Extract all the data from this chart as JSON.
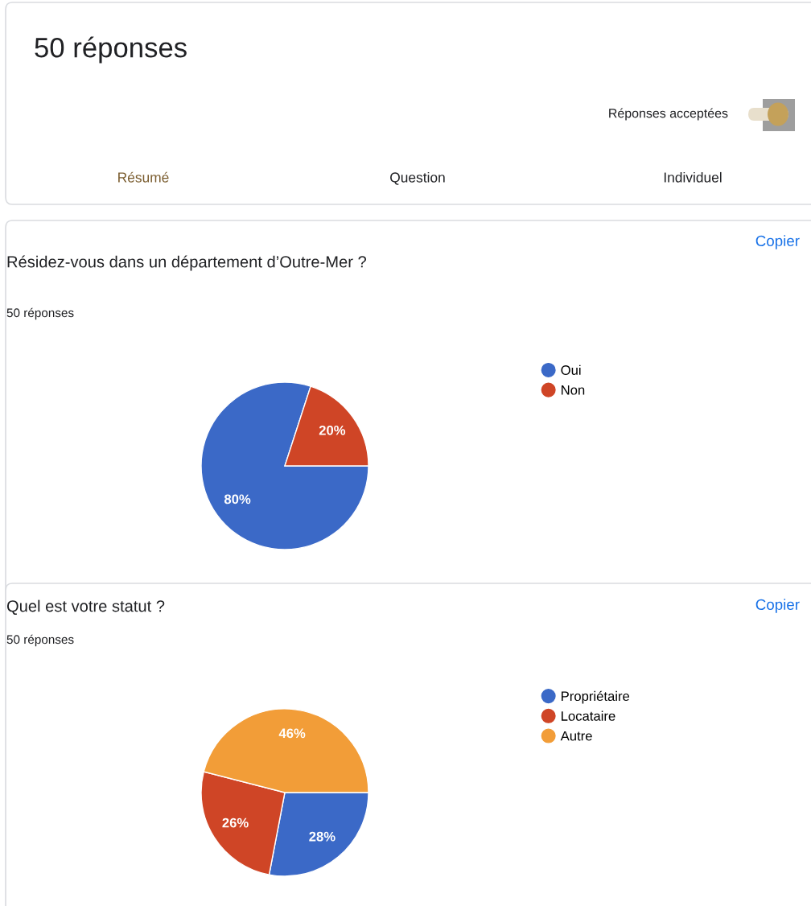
{
  "chart_data": [
    {
      "type": "other",
      "title": "50 réponses",
      "annotations": [
        "Réponses acceptées",
        "Résumé",
        "Question",
        "Individuel"
      ]
    },
    {
      "type": "pie",
      "title": "Résidez-vous dans un département d’Outre-Mer ?",
      "subtitle": "50 réponses",
      "categories": [
        "Oui",
        "Non"
      ],
      "values": [
        80,
        20
      ],
      "colors": [
        "#3b69c7",
        "#cf4526"
      ],
      "value_labels": [
        "80%",
        "20%"
      ],
      "legend": "right",
      "annotations": [
        "Copier"
      ]
    },
    {
      "type": "pie",
      "title": "Quel est votre statut ?",
      "subtitle": "50 réponses",
      "categories": [
        "Propriétaire",
        "Locataire",
        "Autre"
      ],
      "values": [
        28,
        26,
        46
      ],
      "colors": [
        "#3b69c7",
        "#cf4526",
        "#f29d38"
      ],
      "value_labels": [
        "28%",
        "26%",
        "46%"
      ],
      "legend": "right",
      "annotations": [
        "Copier"
      ]
    }
  ]
}
